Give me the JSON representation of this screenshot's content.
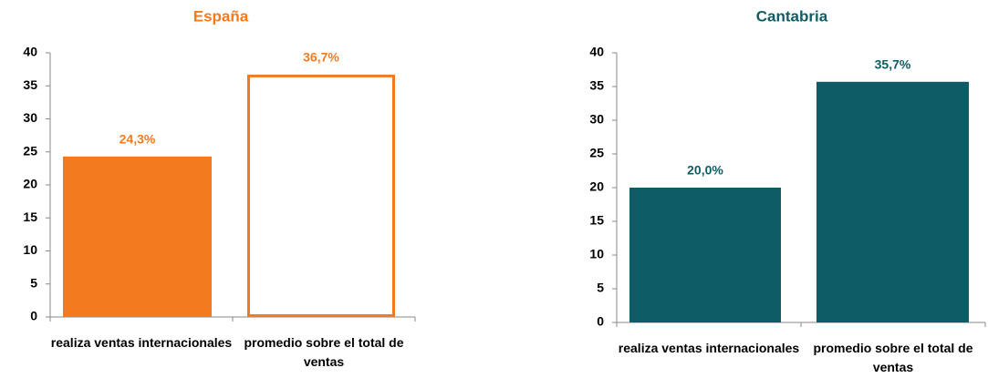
{
  "chart_data": [
    {
      "type": "bar",
      "title": "España",
      "categories": [
        "realiza ventas internacionales",
        "promedio sobre el total de ventas"
      ],
      "values": [
        24.3,
        36.7
      ],
      "value_labels": [
        "24,3%",
        "36,7%"
      ],
      "color": "#F47A1F",
      "fills": [
        "#F47A1F",
        "#FFFFFF"
      ],
      "ylim": [
        0,
        40
      ],
      "yticks": [
        0,
        5,
        10,
        15,
        20,
        25,
        30,
        35,
        40
      ],
      "grid": false
    },
    {
      "type": "bar",
      "title": "Cantabria",
      "categories": [
        "realiza ventas internacionales",
        "promedio sobre el total de ventas"
      ],
      "values": [
        20.0,
        35.7
      ],
      "value_labels": [
        "20,0%",
        "35,7%"
      ],
      "color": "#0E5C66",
      "fills": [
        "#0E5C66",
        "#0E5C66"
      ],
      "ylim": [
        0,
        40
      ],
      "yticks": [
        0,
        5,
        10,
        15,
        20,
        25,
        30,
        35,
        40
      ],
      "grid": false
    }
  ]
}
